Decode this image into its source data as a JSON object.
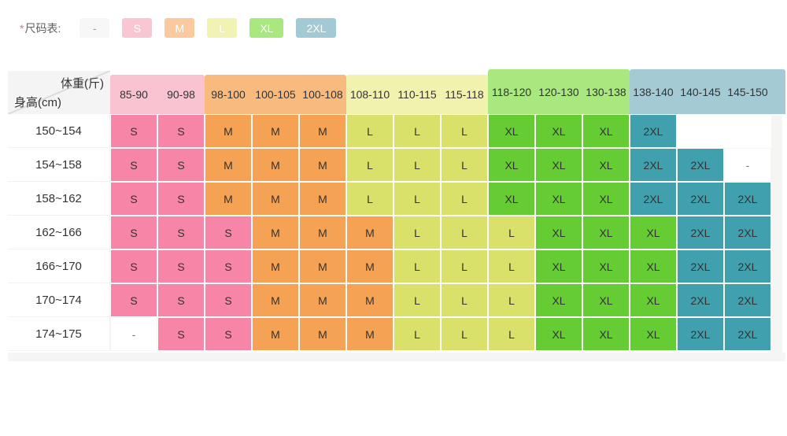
{
  "legend": {
    "required_mark": "*",
    "label": "尺码表:",
    "items": [
      {
        "label": "-",
        "bg": "#f7f7f7",
        "fg": "#999999"
      },
      {
        "label": "S",
        "bg": "#f9c7d3",
        "fg": "#ffffff"
      },
      {
        "label": "M",
        "bg": "#fac99e",
        "fg": "#ffffff"
      },
      {
        "label": "L",
        "bg": "#f0f3b3",
        "fg": "#ffffff"
      },
      {
        "label": "XL",
        "bg": "#a8e87e",
        "fg": "#ffffff"
      },
      {
        "label": "2XL",
        "bg": "#a2cad4",
        "fg": "#ffffff"
      }
    ]
  },
  "table": {
    "corner": {
      "top_right": "体重(斤)",
      "bottom_left": "身高(cm)"
    },
    "groups": [
      {
        "name": "pink",
        "header_bg": "#f9c3d1",
        "tall": false,
        "extend": false,
        "cols": [
          "85-90",
          "90-98"
        ]
      },
      {
        "name": "orange",
        "header_bg": "#f8bb7d",
        "tall": false,
        "extend": false,
        "cols": [
          "98-100",
          "100-105",
          "100-108"
        ]
      },
      {
        "name": "yellow",
        "header_bg": "#f0f2ad",
        "tall": false,
        "extend": false,
        "cols": [
          "108-110",
          "110-115",
          "115-118"
        ]
      },
      {
        "name": "green",
        "header_bg": "#a8e87e",
        "tall": true,
        "extend": false,
        "cols": [
          "118-120",
          "120-130",
          "130-138"
        ]
      },
      {
        "name": "teal",
        "header_bg": "#a4cbd3",
        "tall": true,
        "extend": true,
        "cols": [
          "138-140",
          "140-145",
          "145-150"
        ]
      }
    ],
    "size_colors": {
      "S": "#f685a8",
      "M": "#f6a254",
      "L": "#d9e16b",
      "XL": "#66cc33",
      "2XL": "#41a0ae",
      "-": "#ffffff",
      "": "#ffffff"
    },
    "rows": [
      {
        "height": "150~154",
        "cells": [
          "S",
          "S",
          "M",
          "M",
          "M",
          "L",
          "L",
          "L",
          "XL",
          "XL",
          "XL",
          "2XL",
          "",
          ""
        ]
      },
      {
        "height": "154~158",
        "cells": [
          "S",
          "S",
          "M",
          "M",
          "M",
          "L",
          "L",
          "L",
          "XL",
          "XL",
          "XL",
          "2XL",
          "2XL",
          "-"
        ]
      },
      {
        "height": "158~162",
        "cells": [
          "S",
          "S",
          "M",
          "M",
          "M",
          "L",
          "L",
          "L",
          "XL",
          "XL",
          "XL",
          "2XL",
          "2XL",
          "2XL"
        ]
      },
      {
        "height": "162~166",
        "cells": [
          "S",
          "S",
          "S",
          "M",
          "M",
          "M",
          "L",
          "L",
          "L",
          "XL",
          "XL",
          "XL",
          "2XL",
          "2XL"
        ]
      },
      {
        "height": "166~170",
        "cells": [
          "S",
          "S",
          "S",
          "M",
          "M",
          "M",
          "L",
          "L",
          "L",
          "XL",
          "XL",
          "XL",
          "2XL",
          "2XL"
        ]
      },
      {
        "height": "170~174",
        "cells": [
          "S",
          "S",
          "S",
          "M",
          "M",
          "M",
          "L",
          "L",
          "L",
          "XL",
          "XL",
          "XL",
          "2XL",
          "2XL"
        ]
      },
      {
        "height": "174~175",
        "cells": [
          "-",
          "S",
          "S",
          "M",
          "M",
          "M",
          "L",
          "L",
          "L",
          "XL",
          "XL",
          "XL",
          "2XL",
          "2XL"
        ]
      }
    ]
  }
}
